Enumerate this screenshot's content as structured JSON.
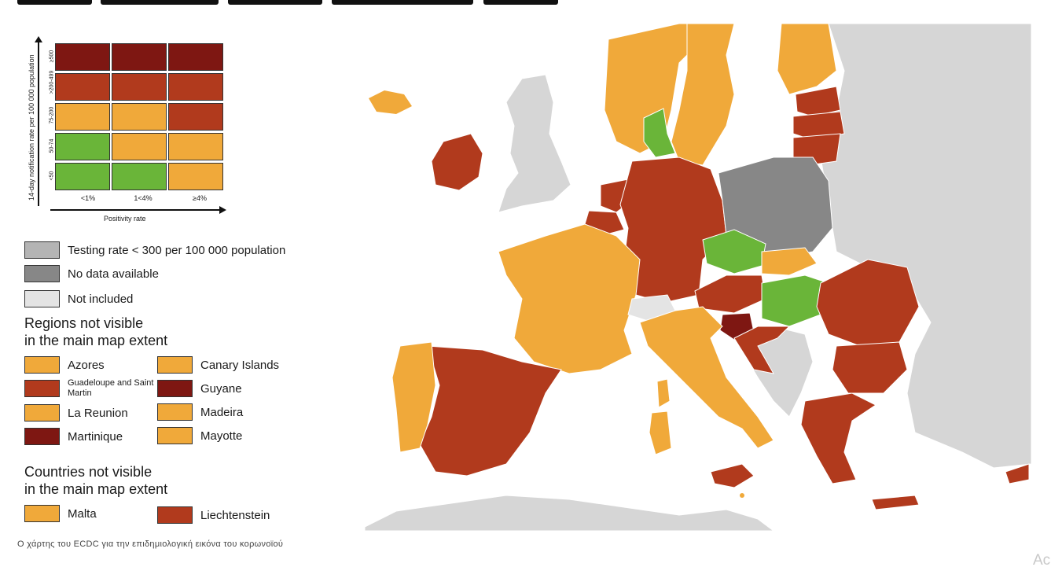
{
  "colors": {
    "dark_red": "#7e1712",
    "red": "#b13a1d",
    "orange": "#f0a93a",
    "green": "#6ab539",
    "grey_testing": "#b4b4b4",
    "grey_nodata": "#878787",
    "grey_notincluded": "#e4e4e4",
    "sea": "#ffffff",
    "outside": "#d6d6d6"
  },
  "matrix": {
    "y_axis_label": "14-day notification rate per 100 000 population",
    "x_axis_label": "Positivity rate",
    "row_labels": [
      "≥500",
      ">200-499",
      "75-200",
      "50-74",
      "<50"
    ],
    "col_labels": [
      "<1%",
      "1<4%",
      "≥4%"
    ],
    "cells": [
      [
        "dark_red",
        "dark_red",
        "dark_red"
      ],
      [
        "red",
        "red",
        "red"
      ],
      [
        "orange",
        "orange",
        "red"
      ],
      [
        "green",
        "orange",
        "orange"
      ],
      [
        "green",
        "green",
        "orange"
      ]
    ]
  },
  "legend": {
    "testing_rate": "Testing rate < 300 per 100 000 population",
    "no_data": "No data available",
    "not_included": "Not included",
    "regions_title_1": "Regions not visible",
    "regions_title_2": "in the main map extent",
    "regions": [
      {
        "name": "Azores",
        "color": "orange"
      },
      {
        "name": "Canary Islands",
        "color": "orange"
      },
      {
        "name": "Guadeloupe and Saint Martin",
        "color": "red"
      },
      {
        "name": "Guyane",
        "color": "dark_red"
      },
      {
        "name": "La Reunion",
        "color": "orange"
      },
      {
        "name": "Madeira",
        "color": "orange"
      },
      {
        "name": "Martinique",
        "color": "dark_red"
      },
      {
        "name": "Mayotte",
        "color": "orange"
      }
    ],
    "countries_title_1": "Countries not visible",
    "countries_title_2": "in the main map extent",
    "countries": [
      {
        "name": "Malta",
        "color": "orange"
      },
      {
        "name": "Liechtenstein",
        "color": "red"
      }
    ]
  },
  "map": {
    "status": {
      "Iceland": "orange",
      "Ireland": "red",
      "United Kingdom": "not included",
      "Norway": "orange",
      "Sweden": "orange",
      "Finland": "orange",
      "Estonia": "red",
      "Latvia": "red",
      "Lithuania": "red",
      "Denmark": "green",
      "Netherlands": "red",
      "Belgium": "red",
      "Luxembourg": "red",
      "Germany": "red",
      "Poland": "no data",
      "Czechia": "green",
      "Slovakia": "orange",
      "Austria": "red",
      "Hungary": "green",
      "Slovenia": "dark_red",
      "Croatia": "red",
      "France": "orange",
      "Switzerland": "not included",
      "Italy": "orange",
      "Spain": "red",
      "Portugal": "orange",
      "Romania": "red",
      "Bulgaria": "red",
      "Greece": "red",
      "Cyprus": "red",
      "Malta": "orange",
      "Sicily": "red"
    }
  },
  "caption": "Ο χάρτης του ECDC για την επιδημιολογική εικόνα του κορωνοϊού",
  "corner_text": "Ac"
}
